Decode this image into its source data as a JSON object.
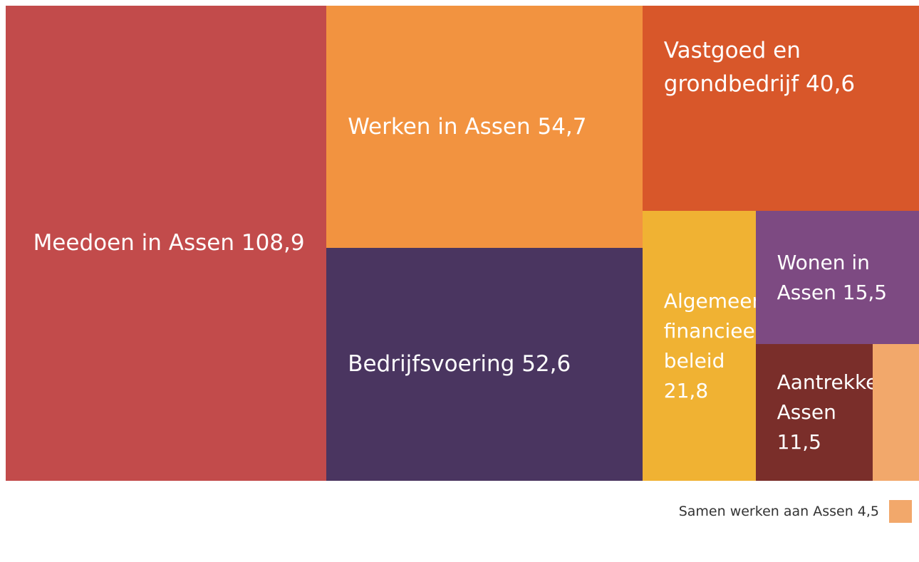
{
  "chart_data": {
    "type": "treemap",
    "categories": [
      "Meedoen in Assen",
      "Werken in Assen",
      "Bedrijfsvoering",
      "Vastgoed en grondbedrijf",
      "Algemeen financieel beleid",
      "Wonen in Assen",
      "Aantrekkelijk Assen",
      "Samen werken aan Assen"
    ],
    "values": [
      108.9,
      54.7,
      52.6,
      40.6,
      21.8,
      15.5,
      11.5,
      4.5
    ],
    "value_labels": [
      "108,9",
      "54,7",
      "52,6",
      "40,6",
      "21,8",
      "15,5",
      "11,5",
      "4,5"
    ],
    "colors": [
      "#c24b4b",
      "#f29340",
      "#4a3560",
      "#d8572a",
      "#f0b233",
      "#7d4a82",
      "#7a2e2a",
      "#f2a86b"
    ]
  }
}
